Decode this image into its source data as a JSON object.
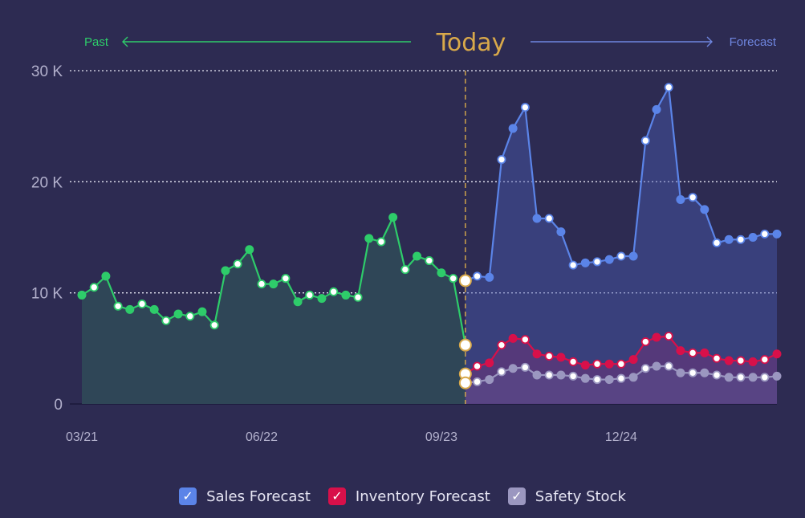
{
  "header": {
    "past_label": "Past",
    "today_label": "Today",
    "forecast_label": "Forecast"
  },
  "legend": [
    {
      "label": "Sales Forecast",
      "color": "#5b84e8"
    },
    {
      "label": "Inventory Forecast",
      "color": "#d8104a"
    },
    {
      "label": "Safety Stock",
      "color": "#9b97c0"
    }
  ],
  "colors": {
    "background": "#2d2b52",
    "past": "#2ecc6a",
    "today": "#d9a94a",
    "forecast_arrow": "#6f86e0",
    "grid": "#e8e8f5",
    "axis_text": "#b2b0cc"
  },
  "chart_data": {
    "type": "line",
    "x_type": "date",
    "x_ticks": [
      "03/21",
      "06/22",
      "09/23",
      "12/24"
    ],
    "y_ticks": [
      "0",
      "10 K",
      "20 K",
      "30 K"
    ],
    "ylim": [
      0,
      30000
    ],
    "grid": "horizontal dotted",
    "today_date": "2023-11-01",
    "series": [
      {
        "name": "Past",
        "dates": [
          "2021-03-01",
          "2021-04-01",
          "2021-05-01",
          "2021-06-01",
          "2021-07-01",
          "2021-08-01",
          "2021-09-01",
          "2021-10-01",
          "2021-11-01",
          "2021-12-01",
          "2022-01-01",
          "2022-02-01",
          "2022-03-01",
          "2022-04-01",
          "2022-05-01",
          "2022-06-01",
          "2022-07-01",
          "2022-08-01",
          "2022-09-01",
          "2022-10-01",
          "2022-11-01",
          "2022-12-01",
          "2023-01-01",
          "2023-02-01",
          "2023-03-01",
          "2023-04-01",
          "2023-05-01",
          "2023-06-01",
          "2023-07-01",
          "2023-08-01",
          "2023-09-01",
          "2023-10-01",
          "2023-11-01"
        ],
        "values": [
          9800,
          10500,
          11500,
          8800,
          8500,
          9000,
          8500,
          7500,
          8100,
          7900,
          8300,
          7100,
          12000,
          12600,
          13900,
          10800,
          10800,
          11300,
          9200,
          9800,
          9500,
          10100,
          9800,
          9600,
          14900,
          14600,
          16800,
          12100,
          13300,
          12900,
          11800,
          11300,
          5300
        ]
      },
      {
        "name": "Sales Forecast",
        "dates": [
          "2023-11-01",
          "2023-12-01",
          "2024-01-01",
          "2024-02-01",
          "2024-03-01",
          "2024-04-01",
          "2024-05-01",
          "2024-06-01",
          "2024-07-01",
          "2024-08-01",
          "2024-09-01",
          "2024-10-01",
          "2024-11-01",
          "2024-12-01",
          "2025-01-01",
          "2025-02-01",
          "2025-03-01",
          "2025-04-01",
          "2025-05-01",
          "2025-06-01",
          "2025-07-01",
          "2025-08-01",
          "2025-09-01",
          "2025-10-01",
          "2025-11-01",
          "2025-12-01",
          "2026-01-01"
        ],
        "values": [
          11100,
          11500,
          11400,
          22000,
          24800,
          26700,
          16700,
          16700,
          15500,
          12500,
          12700,
          12800,
          13000,
          13300,
          13300,
          23700,
          26500,
          28500,
          18400,
          18600,
          17500,
          14500,
          14800,
          14800,
          15000,
          15300,
          15300
        ]
      },
      {
        "name": "Inventory Forecast",
        "dates": [
          "2023-11-01",
          "2023-12-01",
          "2024-01-01",
          "2024-02-01",
          "2024-03-01",
          "2024-04-01",
          "2024-05-01",
          "2024-06-01",
          "2024-07-01",
          "2024-08-01",
          "2024-09-01",
          "2024-10-01",
          "2024-11-01",
          "2024-12-01",
          "2025-01-01",
          "2025-02-01",
          "2025-03-01",
          "2025-04-01",
          "2025-05-01",
          "2025-06-01",
          "2025-07-01",
          "2025-08-01",
          "2025-09-01",
          "2025-10-01",
          "2025-11-01",
          "2025-12-01",
          "2026-01-01"
        ],
        "values": [
          2700,
          3400,
          3700,
          5300,
          5900,
          5800,
          4500,
          4300,
          4200,
          3800,
          3500,
          3600,
          3600,
          3600,
          4000,
          5600,
          6000,
          6100,
          4800,
          4600,
          4600,
          4100,
          3900,
          3900,
          3800,
          4000,
          4500
        ]
      },
      {
        "name": "Safety Stock",
        "dates": [
          "2023-11-01",
          "2023-12-01",
          "2024-01-01",
          "2024-02-01",
          "2024-03-01",
          "2024-04-01",
          "2024-05-01",
          "2024-06-01",
          "2024-07-01",
          "2024-08-01",
          "2024-09-01",
          "2024-10-01",
          "2024-11-01",
          "2024-12-01",
          "2025-01-01",
          "2025-02-01",
          "2025-03-01",
          "2025-04-01",
          "2025-05-01",
          "2025-06-01",
          "2025-07-01",
          "2025-08-01",
          "2025-09-01",
          "2025-10-01",
          "2025-11-01",
          "2025-12-01",
          "2026-01-01"
        ],
        "values": [
          1900,
          2000,
          2200,
          2900,
          3200,
          3300,
          2600,
          2600,
          2600,
          2500,
          2300,
          2200,
          2200,
          2300,
          2400,
          3200,
          3400,
          3400,
          2800,
          2800,
          2800,
          2600,
          2400,
          2400,
          2400,
          2400,
          2500
        ]
      }
    ]
  }
}
